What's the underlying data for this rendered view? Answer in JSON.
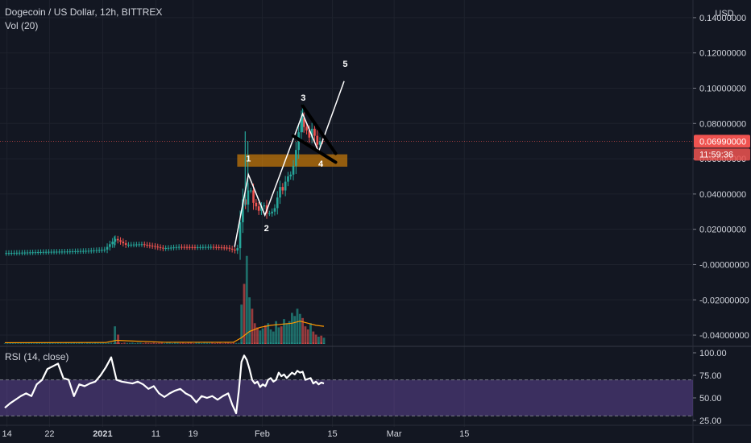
{
  "legend": {
    "title": "Dogecoin / US Dollar, 12h, BITTREX",
    "volume": "Vol (20)",
    "rsi": "RSI (14, close)"
  },
  "chart_data": {
    "type": "candlestick",
    "currency_label": "USD",
    "price_axis": {
      "min": -0.045,
      "max": 0.15,
      "ticks": [
        0.14,
        0.12,
        0.1,
        0.08,
        0.06,
        0.04,
        0.02,
        0,
        -0.02,
        -0.04
      ],
      "tick_labels": [
        "0.14000000",
        "0.12000000",
        "0.10000000",
        "0.08000000",
        "0.06000000",
        "0.04000000",
        "0.02000000",
        "-0.00000000",
        "-0.02000000",
        "-0.04000000"
      ]
    },
    "current_price": {
      "value": 0.0699,
      "label": "0.06990000",
      "countdown": "11:59:36",
      "color": "#ef5350"
    },
    "x_axis": {
      "labels": [
        {
          "t": 0.4,
          "text": "14"
        },
        {
          "t": 8.4,
          "text": "22"
        },
        {
          "t": 18.4,
          "text": "2021"
        },
        {
          "t": 28.4,
          "text": "11"
        },
        {
          "t": 35.4,
          "text": "19"
        },
        {
          "t": 48.4,
          "text": "Feb"
        },
        {
          "t": 61.6,
          "text": "15"
        },
        {
          "t": 73.2,
          "text": "Mar"
        },
        {
          "t": 86.4,
          "text": "15"
        }
      ],
      "last_date_index": 60
    },
    "price_series": {
      "smooth": [
        [
          0,
          0.0065
        ],
        [
          4,
          0.0068
        ],
        [
          8,
          0.0072
        ],
        [
          12,
          0.0074
        ],
        [
          16,
          0.0078
        ],
        [
          19,
          0.0085
        ],
        [
          20,
          0.0115
        ],
        [
          21,
          0.0145
        ],
        [
          22,
          0.013
        ],
        [
          23,
          0.0112
        ],
        [
          26,
          0.0115
        ],
        [
          28,
          0.0105
        ],
        [
          30,
          0.0092
        ],
        [
          33,
          0.01
        ],
        [
          36,
          0.0098
        ],
        [
          39,
          0.01
        ],
        [
          42,
          0.0095
        ],
        [
          43.5,
          0.008
        ],
        [
          44,
          0.0093
        ],
        [
          44.5,
          0.024
        ],
        [
          45,
          0.037
        ],
        [
          45.5,
          0.034
        ],
        [
          46,
          0.042
        ],
        [
          46.5,
          0.042
        ],
        [
          47,
          0.035
        ],
        [
          47.5,
          0.033
        ],
        [
          48,
          0.0305
        ],
        [
          48.5,
          0.033
        ],
        [
          49,
          0.0335
        ],
        [
          49.5,
          0.029
        ],
        [
          50,
          0.029
        ],
        [
          50.5,
          0.03
        ],
        [
          51,
          0.032
        ],
        [
          51.5,
          0.038
        ],
        [
          52,
          0.044
        ],
        [
          52.5,
          0.042
        ],
        [
          53,
          0.047
        ],
        [
          53.5,
          0.05
        ],
        [
          54,
          0.051
        ],
        [
          54.5,
          0.056
        ],
        [
          55,
          0.065
        ],
        [
          55.5,
          0.075
        ],
        [
          56,
          0.083
        ],
        [
          56.5,
          0.078
        ],
        [
          57,
          0.076
        ],
        [
          57.5,
          0.072
        ],
        [
          58,
          0.077
        ],
        [
          58.5,
          0.073
        ],
        [
          59,
          0.068
        ],
        [
          59.5,
          0.07
        ],
        [
          60,
          0.0699
        ]
      ],
      "spikes": [
        {
          "t": 20.6,
          "high": 0.016,
          "low": 0.0095
        },
        {
          "t": 45.2,
          "high": 0.0755,
          "low": 0.033
        },
        {
          "t": 45.7,
          "high": 0.07,
          "low": 0.04
        },
        {
          "t": 56.0,
          "high": 0.091,
          "low": 0.075
        }
      ]
    },
    "volume": {
      "max": 0.07,
      "bars": [
        [
          20.7,
          0.017
        ],
        [
          21.3,
          0.009
        ],
        [
          44.5,
          0.038
        ],
        [
          45.0,
          0.058
        ],
        [
          45.5,
          0.085
        ],
        [
          46.0,
          0.045
        ],
        [
          46.5,
          0.034
        ],
        [
          47.0,
          0.02
        ],
        [
          47.5,
          0.016
        ],
        [
          48.0,
          0.013
        ],
        [
          48.5,
          0.015
        ],
        [
          49.0,
          0.018
        ],
        [
          49.5,
          0.02
        ],
        [
          50.0,
          0.014
        ],
        [
          50.5,
          0.012
        ],
        [
          51.0,
          0.022
        ],
        [
          51.5,
          0.016
        ],
        [
          52.0,
          0.017
        ],
        [
          52.5,
          0.024
        ],
        [
          53.0,
          0.02
        ],
        [
          53.5,
          0.022
        ],
        [
          54.0,
          0.03
        ],
        [
          54.5,
          0.027
        ],
        [
          55.0,
          0.034
        ],
        [
          55.5,
          0.029
        ],
        [
          56.0,
          0.025
        ],
        [
          56.5,
          0.017
        ],
        [
          57.0,
          0.014
        ],
        [
          57.5,
          0.02
        ],
        [
          58.0,
          0.012
        ],
        [
          58.5,
          0.009
        ],
        [
          59.0,
          0.007
        ],
        [
          59.5,
          0.008
        ],
        [
          60.0,
          0.006
        ]
      ],
      "ma": [
        [
          0,
          0.0012
        ],
        [
          19,
          0.0014
        ],
        [
          21,
          0.0035
        ],
        [
          23,
          0.003
        ],
        [
          30,
          0.0016
        ],
        [
          43,
          0.0016
        ],
        [
          44.5,
          0.006
        ],
        [
          46,
          0.012
        ],
        [
          48,
          0.016
        ],
        [
          50,
          0.018
        ],
        [
          52,
          0.019
        ],
        [
          54,
          0.02
        ],
        [
          55.5,
          0.022
        ],
        [
          57,
          0.02
        ],
        [
          58.5,
          0.018
        ],
        [
          60,
          0.017
        ]
      ]
    },
    "rsi": {
      "axis": {
        "min": 25,
        "max": 100
      },
      "ticks": [
        100,
        75,
        50,
        25
      ],
      "tick_labels": [
        "100.00",
        "75.00",
        "50.00",
        "25.00"
      ],
      "bands": {
        "upper": 70,
        "lower": 30
      },
      "values": [
        [
          0,
          39
        ],
        [
          1,
          44
        ],
        [
          2,
          48
        ],
        [
          3,
          52
        ],
        [
          4,
          55
        ],
        [
          5,
          52
        ],
        [
          6,
          65
        ],
        [
          7,
          70
        ],
        [
          8,
          82
        ],
        [
          9,
          85
        ],
        [
          10,
          88
        ],
        [
          11,
          72
        ],
        [
          12,
          70
        ],
        [
          13,
          52
        ],
        [
          14,
          65
        ],
        [
          15,
          63
        ],
        [
          16,
          66
        ],
        [
          17,
          68
        ],
        [
          18,
          75
        ],
        [
          19,
          84
        ],
        [
          20,
          95
        ],
        [
          21,
          70
        ],
        [
          22,
          68
        ],
        [
          23,
          67
        ],
        [
          24,
          66
        ],
        [
          25,
          68
        ],
        [
          26,
          65
        ],
        [
          27,
          60
        ],
        [
          28,
          63
        ],
        [
          29,
          55
        ],
        [
          30,
          51
        ],
        [
          31,
          55
        ],
        [
          32,
          58
        ],
        [
          33,
          60
        ],
        [
          34,
          55
        ],
        [
          35,
          52
        ],
        [
          36,
          45
        ],
        [
          37,
          52
        ],
        [
          38,
          50
        ],
        [
          39,
          52
        ],
        [
          40,
          48
        ],
        [
          41,
          52
        ],
        [
          42,
          55
        ],
        [
          42.8,
          42
        ],
        [
          43.5,
          33
        ],
        [
          44,
          58
        ],
        [
          44.5,
          90
        ],
        [
          45,
          97
        ],
        [
          45.5,
          92
        ],
        [
          46,
          82
        ],
        [
          46.5,
          70
        ],
        [
          47,
          66
        ],
        [
          47.5,
          68
        ],
        [
          48,
          62
        ],
        [
          48.5,
          65
        ],
        [
          49,
          63
        ],
        [
          49.5,
          70
        ],
        [
          50,
          72
        ],
        [
          50.5,
          68
        ],
        [
          51,
          70
        ],
        [
          51.5,
          78
        ],
        [
          52,
          74
        ],
        [
          52.5,
          76
        ],
        [
          53,
          72
        ],
        [
          53.5,
          75
        ],
        [
          54,
          78
        ],
        [
          54.5,
          76
        ],
        [
          55,
          80
        ],
        [
          55.5,
          78
        ],
        [
          56,
          79
        ],
        [
          56.5,
          70
        ],
        [
          57,
          71
        ],
        [
          57.5,
          72
        ],
        [
          58,
          66
        ],
        [
          58.5,
          68
        ],
        [
          59,
          65
        ],
        [
          59.5,
          67
        ],
        [
          60,
          66
        ]
      ]
    },
    "annotations": {
      "support_zone": {
        "t1": 43.7,
        "t2": 64.4,
        "p_top": 0.0625,
        "p_bottom": 0.0555,
        "color": "#ff9800"
      },
      "waves": [
        {
          "label": "1",
          "t": 45.8,
          "p": 0.0585
        },
        {
          "label": "2",
          "t": 49.2,
          "p": 0.019
        },
        {
          "label": "3",
          "t": 56.1,
          "p": 0.093
        },
        {
          "label": "4",
          "t": 59.4,
          "p": 0.0555
        },
        {
          "label": "5",
          "t": 64.0,
          "p": 0.112
        }
      ],
      "wave_path": [
        [
          43.2,
          0.01
        ],
        [
          45.8,
          0.051
        ],
        [
          48.9,
          0.028
        ],
        [
          56.0,
          0.0855
        ],
        [
          59.0,
          0.064
        ],
        [
          63.8,
          0.104
        ]
      ],
      "wedge_top": [
        [
          56.0,
          0.09
        ],
        [
          62.2,
          0.063
        ]
      ],
      "wedge_bottom": [
        [
          54.2,
          0.073
        ],
        [
          62.2,
          0.058
        ]
      ]
    },
    "colors": {
      "up": "#26a69a",
      "down": "#ef5350",
      "ma": "#ff9800",
      "rsi_line": "#ffffff",
      "rsi_band": "#7e57c2",
      "wedge": "#000000"
    }
  }
}
